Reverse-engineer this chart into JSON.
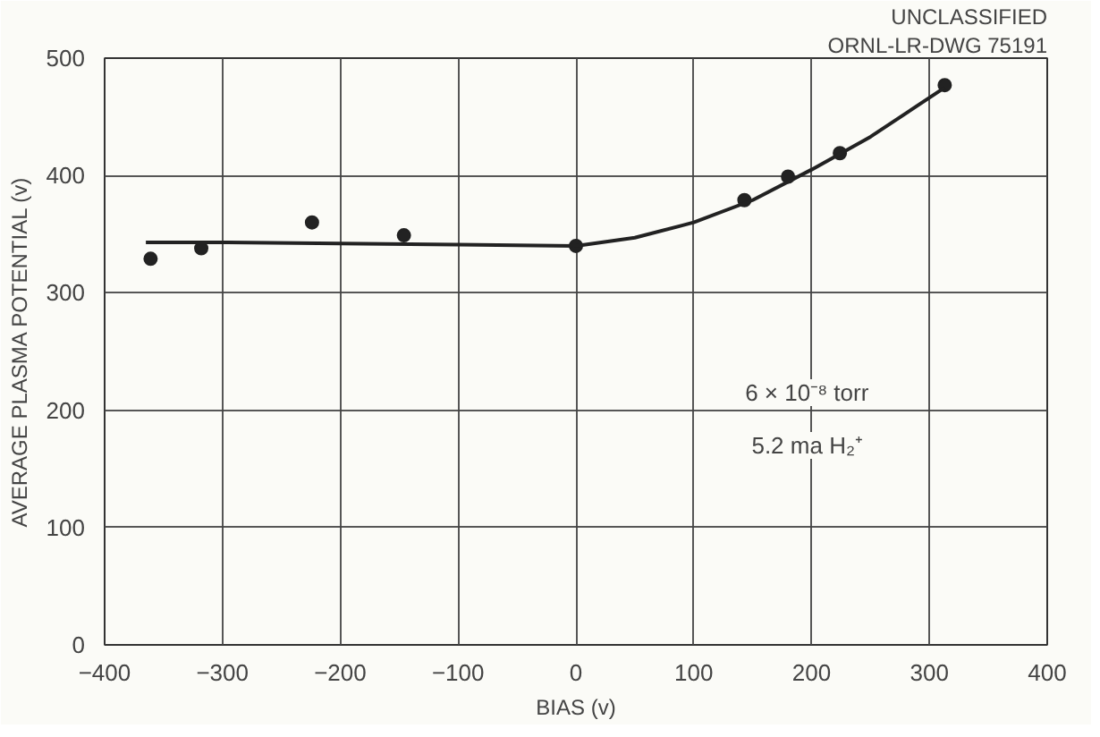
{
  "chart_data": {
    "type": "scatter",
    "xlabel": "BIAS (v)",
    "ylabel": "AVERAGE PLASMA POTENTIAL (v)",
    "xlim": [
      -400,
      400
    ],
    "xticks": [
      -400,
      -300,
      -200,
      -100,
      0,
      100,
      200,
      300,
      400
    ],
    "ylim": [
      0,
      500
    ],
    "yticks": [
      0,
      100,
      200,
      300,
      400,
      500
    ],
    "grid": true,
    "annotations": [
      "UNCLASSIFIED",
      "ORNL-LR-DWG 75191",
      "6 × 10⁻⁸ torr",
      "5.2 ma H₂⁺"
    ],
    "series": [
      {
        "color": "#222222",
        "marker": "circle",
        "x": [
          -361,
          -318,
          -224,
          -146,
          0,
          143,
          180,
          224,
          313
        ],
        "values": [
          329,
          338,
          360,
          349,
          340,
          379,
          399,
          419,
          477
        ]
      },
      {
        "type": "line",
        "color": "#222222",
        "marker": "none",
        "line_style": "solid",
        "x": [
          -365,
          -300,
          -200,
          -100,
          0,
          50,
          100,
          150,
          200,
          250,
          313
        ],
        "values": [
          343,
          343,
          342,
          341,
          340,
          347,
          360,
          379,
          405,
          433,
          475
        ]
      }
    ]
  }
}
